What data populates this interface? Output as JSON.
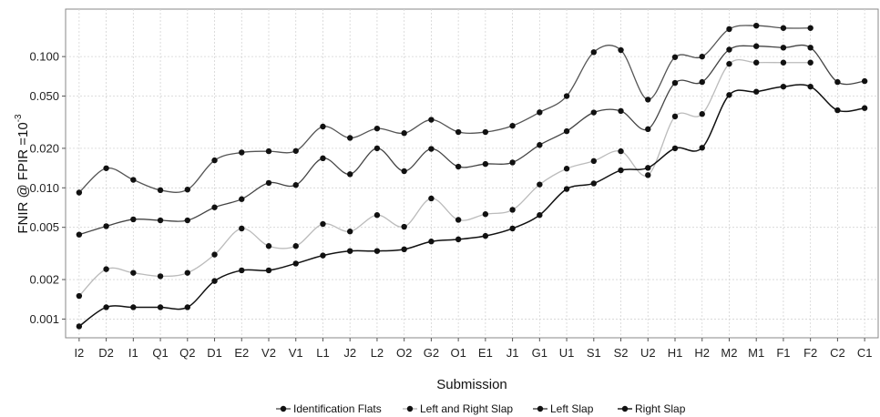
{
  "chart_data": {
    "type": "line",
    "xlabel": "Submission",
    "ylabel_parts": [
      "FNIR @ FPIR =10",
      "-3"
    ],
    "y_scale": "log",
    "ylim": [
      0.00072,
      0.23
    ],
    "y_ticks": [
      0.001,
      0.002,
      0.005,
      0.01,
      0.02,
      0.05,
      0.1
    ],
    "y_tick_labels": [
      "0.001",
      "0.002",
      "0.005",
      "0.010",
      "0.020",
      "0.050",
      "0.100"
    ],
    "grid": true,
    "legend_position": "bottom",
    "categories": [
      "I2",
      "D2",
      "I1",
      "Q1",
      "Q2",
      "D1",
      "E2",
      "V2",
      "V1",
      "L1",
      "J2",
      "L2",
      "O2",
      "G2",
      "O1",
      "E1",
      "J1",
      "G1",
      "U1",
      "S1",
      "S2",
      "U2",
      "H1",
      "H2",
      "M2",
      "M1",
      "F1",
      "F2",
      "C2",
      "C1"
    ],
    "series": [
      {
        "name": "Identification Flats",
        "color": "#555555",
        "values": [
          0.0092,
          0.0141,
          0.0115,
          0.0096,
          0.0097,
          0.0162,
          0.0186,
          0.019,
          0.0191,
          0.0293,
          0.024,
          0.0283,
          0.0261,
          0.033,
          0.0266,
          0.0266,
          0.0297,
          0.0376,
          0.05,
          0.108,
          0.112,
          0.047,
          0.099,
          0.1,
          0.162,
          0.172,
          0.165,
          0.165,
          null,
          null
        ]
      },
      {
        "name": "Left and Right Slap",
        "color": "#bbbbbb",
        "values": [
          0.0015,
          0.0024,
          0.00225,
          0.00212,
          0.00225,
          0.0031,
          0.0049,
          0.0036,
          0.0036,
          0.0053,
          0.00465,
          0.0062,
          0.00505,
          0.0083,
          0.0057,
          0.0063,
          0.0068,
          0.0106,
          0.014,
          0.016,
          0.019,
          0.0125,
          0.035,
          0.0365,
          0.088,
          0.09,
          0.09,
          0.09,
          null,
          null
        ]
      },
      {
        "name": "Left Slap",
        "color": "#444444",
        "values": [
          0.0044,
          0.0051,
          0.00575,
          0.00565,
          0.00565,
          0.0071,
          0.0082,
          0.0109,
          0.0105,
          0.0168,
          0.0127,
          0.02,
          0.0134,
          0.0198,
          0.0145,
          0.0152,
          0.0156,
          0.0212,
          0.027,
          0.0375,
          0.0385,
          0.028,
          0.063,
          0.064,
          0.113,
          0.12,
          0.117,
          0.117,
          0.064,
          0.065
        ]
      },
      {
        "name": "Right Slap",
        "color": "#111111",
        "values": [
          0.00088,
          0.00123,
          0.00123,
          0.00123,
          0.00123,
          0.00195,
          0.00235,
          0.00235,
          0.00265,
          0.00305,
          0.0033,
          0.0033,
          0.0034,
          0.0039,
          0.00405,
          0.0043,
          0.0049,
          0.0062,
          0.0098,
          0.0108,
          0.0136,
          0.0142,
          0.02,
          0.0202,
          0.051,
          0.054,
          0.059,
          0.059,
          0.039,
          0.0405
        ]
      }
    ]
  }
}
